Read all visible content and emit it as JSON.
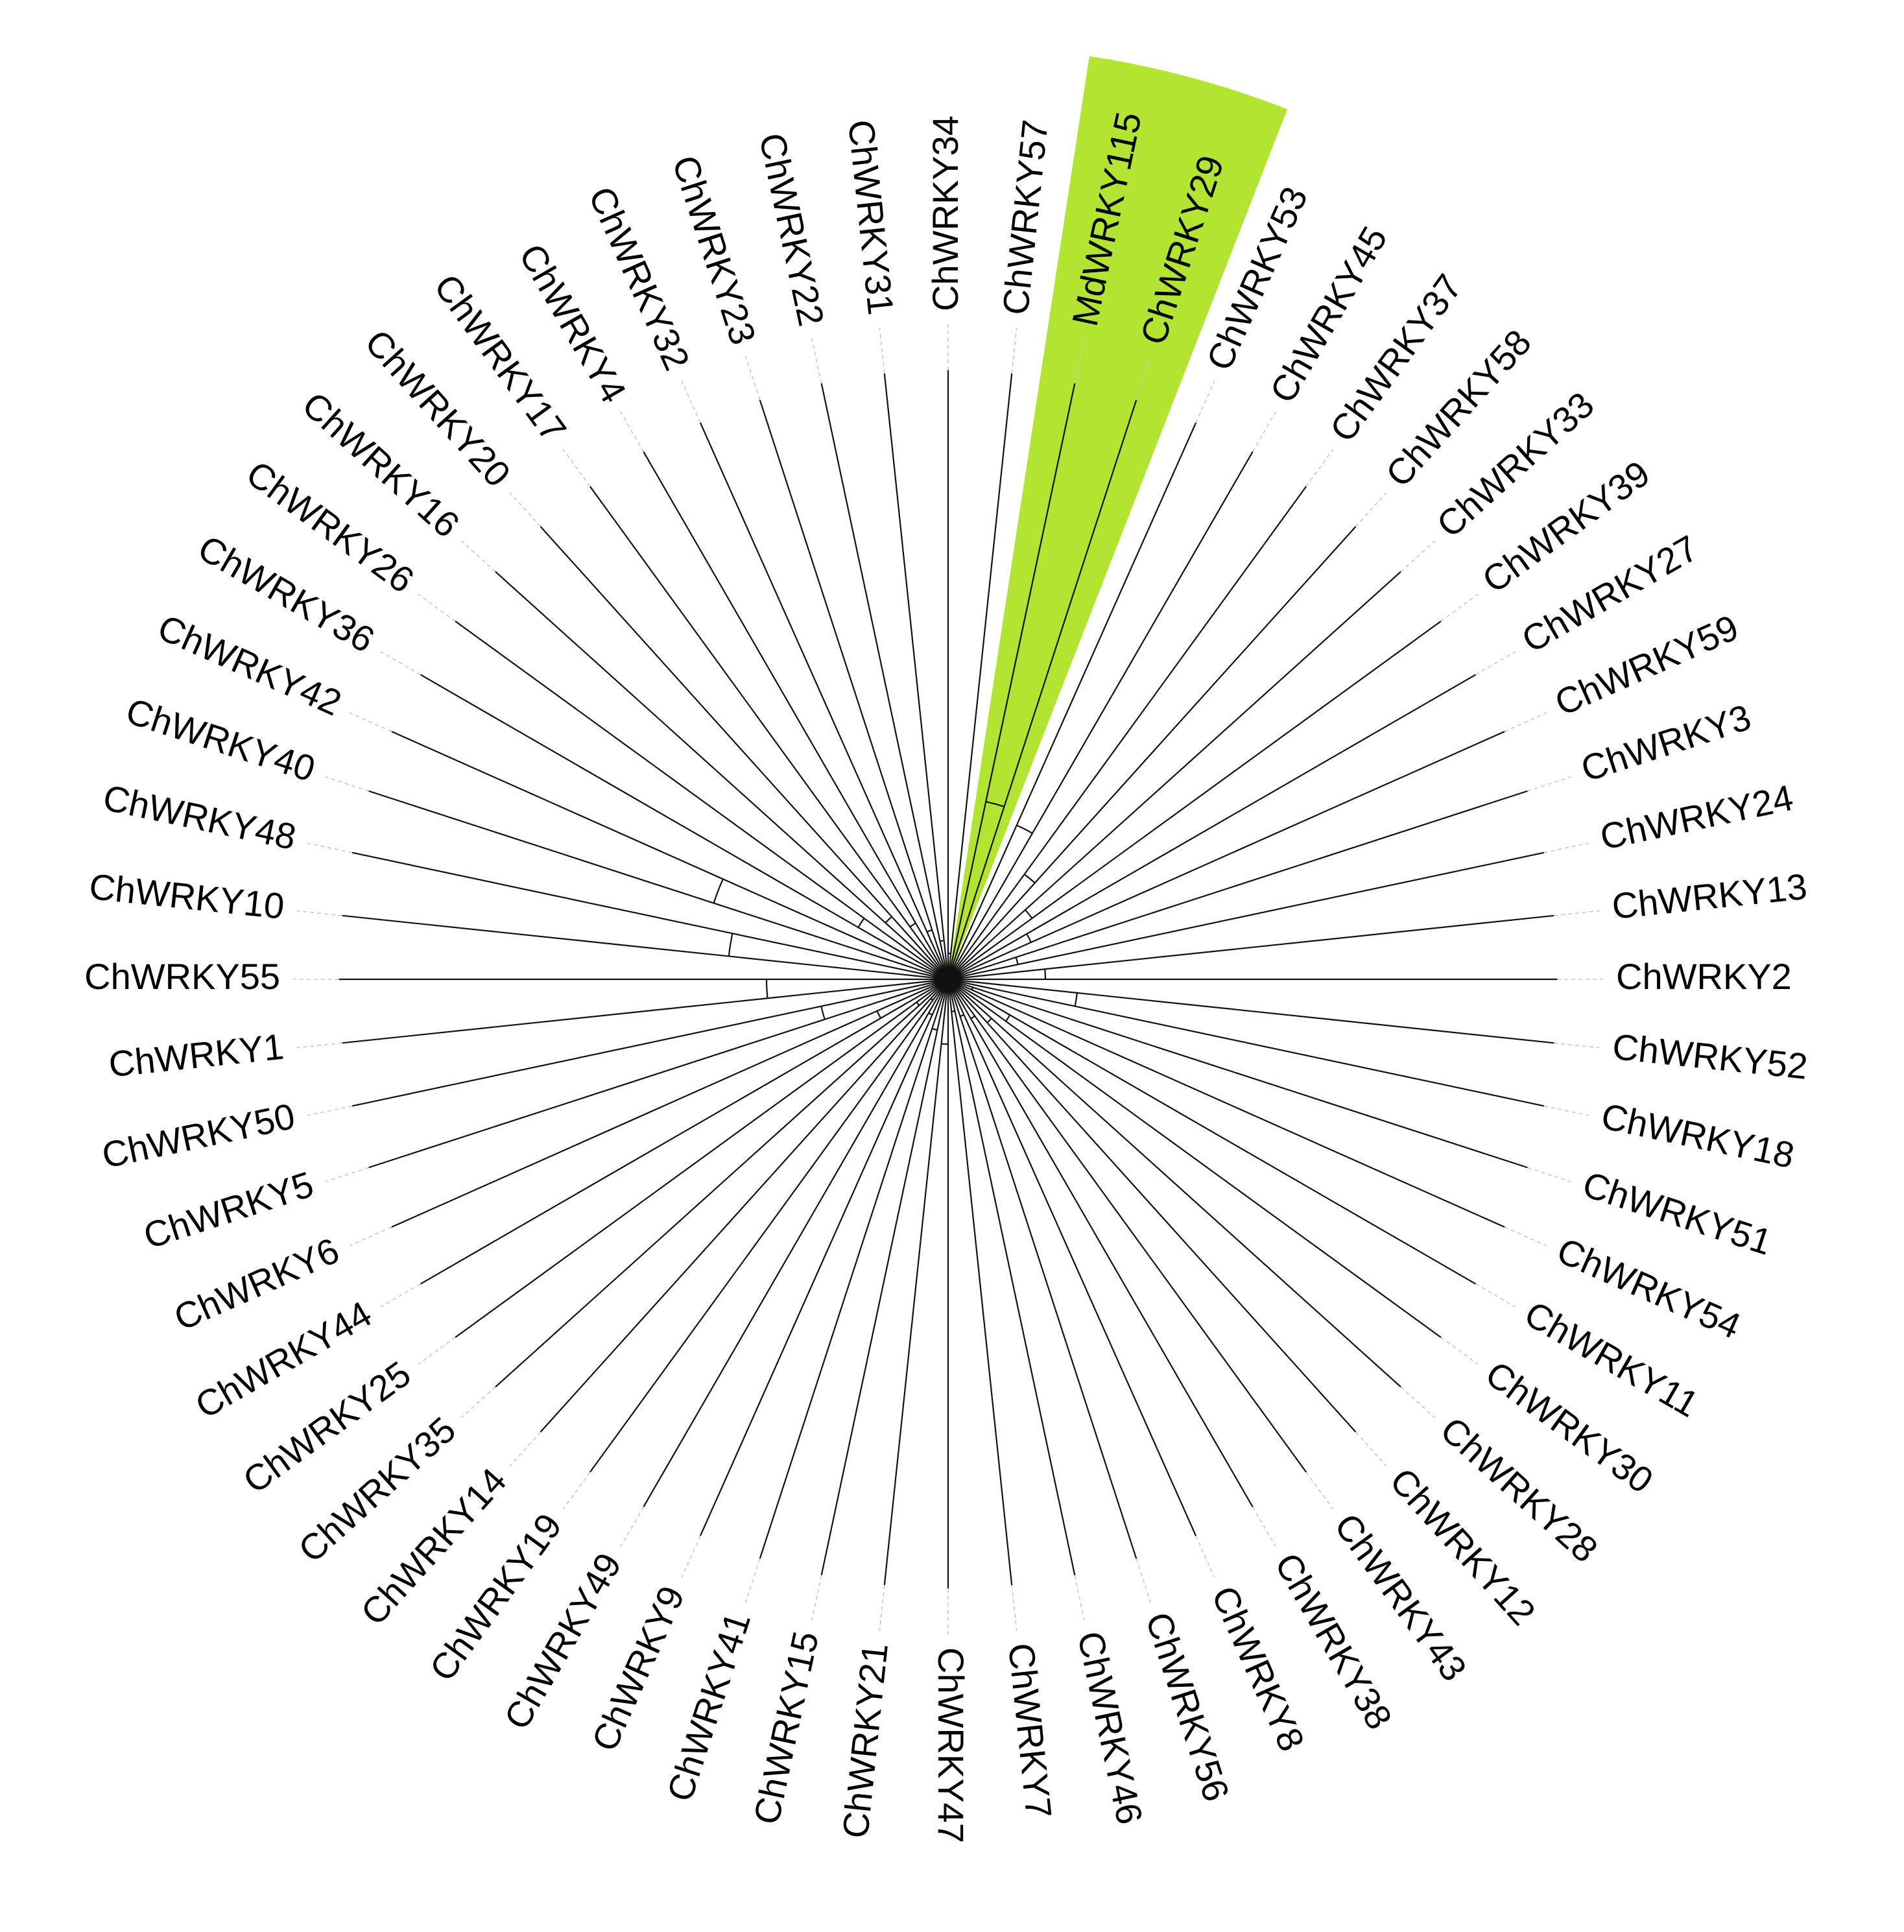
{
  "tree": {
    "highlight_color": "#b1e532",
    "leaves": [
      {
        "label": "MdWRKY115",
        "highlight": true
      },
      {
        "label": "ChWRKY29",
        "highlight": true
      },
      {
        "label": "ChWRKY53"
      },
      {
        "label": "ChWRKY45"
      },
      {
        "label": "ChWRKY37"
      },
      {
        "label": "ChWRKY58"
      },
      {
        "label": "ChWRKY33"
      },
      {
        "label": "ChWRKY39"
      },
      {
        "label": "ChWRKY27"
      },
      {
        "label": "ChWRKY59"
      },
      {
        "label": "ChWRKY3"
      },
      {
        "label": "ChWRKY24"
      },
      {
        "label": "ChWRKY13"
      },
      {
        "label": "ChWRKY2"
      },
      {
        "label": "ChWRKY52"
      },
      {
        "label": "ChWRKY18"
      },
      {
        "label": "ChWRKY51"
      },
      {
        "label": "ChWRKY54"
      },
      {
        "label": "ChWRKY11"
      },
      {
        "label": "ChWRKY30"
      },
      {
        "label": "ChWRKY28"
      },
      {
        "label": "ChWRKY12"
      },
      {
        "label": "ChWRKY43"
      },
      {
        "label": "ChWRKY38"
      },
      {
        "label": "ChWRKY8"
      },
      {
        "label": "ChWRKY56"
      },
      {
        "label": "ChWRKY46"
      },
      {
        "label": "ChWRKY7"
      },
      {
        "label": "ChWRKY47"
      },
      {
        "label": "ChWRKY21"
      },
      {
        "label": "ChWRKY15"
      },
      {
        "label": "ChWRKY41"
      },
      {
        "label": "ChWRKY9"
      },
      {
        "label": "ChWRKY49"
      },
      {
        "label": "ChWRKY19"
      },
      {
        "label": "ChWRKY14"
      },
      {
        "label": "ChWRKY35"
      },
      {
        "label": "ChWRKY25"
      },
      {
        "label": "ChWRKY44"
      },
      {
        "label": "ChWRKY6"
      },
      {
        "label": "ChWRKY5"
      },
      {
        "label": "ChWRKY50"
      },
      {
        "label": "ChWRKY1"
      },
      {
        "label": "ChWRKY55"
      },
      {
        "label": "ChWRKY10"
      },
      {
        "label": "ChWRKY48"
      },
      {
        "label": "ChWRKY40"
      },
      {
        "label": "ChWRKY42"
      },
      {
        "label": "ChWRKY36"
      },
      {
        "label": "ChWRKY26"
      },
      {
        "label": "ChWRKY16"
      },
      {
        "label": "ChWRKY20"
      },
      {
        "label": "ChWRKY17"
      },
      {
        "label": "ChWRKY4"
      },
      {
        "label": "ChWRKY32"
      },
      {
        "label": "ChWRKY23"
      },
      {
        "label": "ChWRKY22"
      },
      {
        "label": "ChWRKY31"
      },
      {
        "label": "ChWRKY34"
      },
      {
        "label": "ChWRKY57"
      }
    ]
  }
}
